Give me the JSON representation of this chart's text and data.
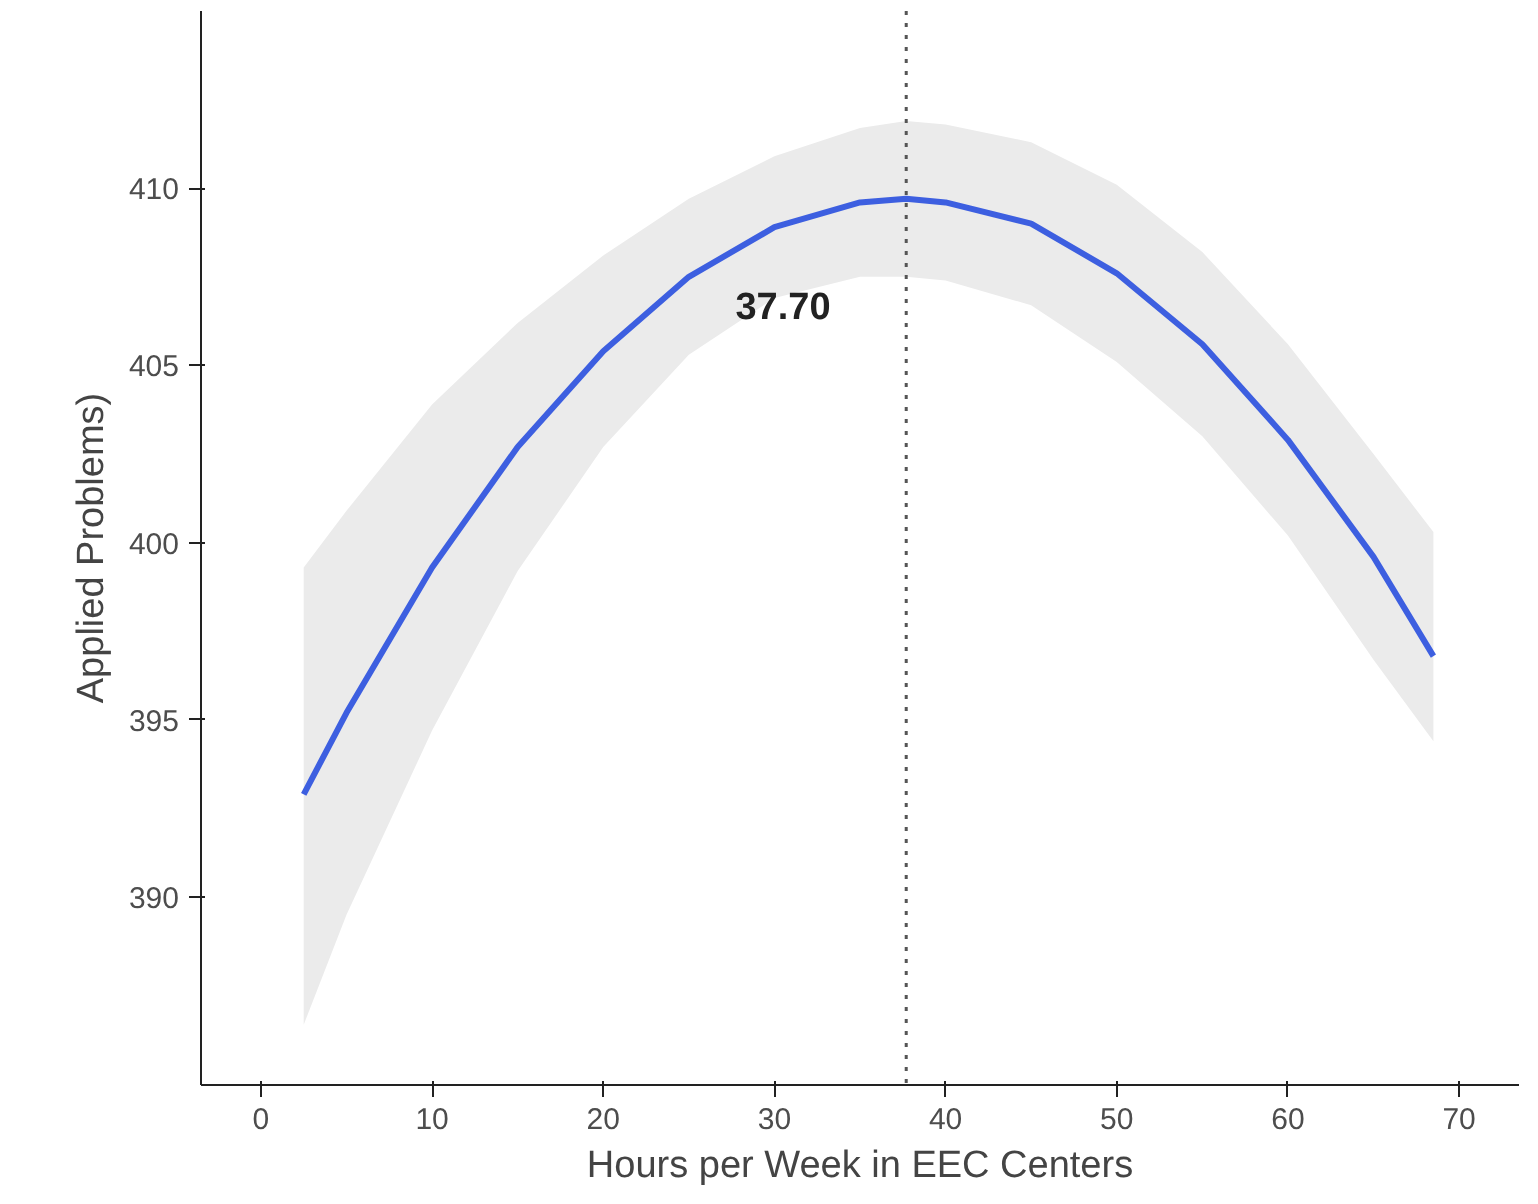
{
  "chart_data": {
    "type": "line",
    "xlabel": "Hours per Week in EEC Centers",
    "ylabel": "Applied Problems)",
    "xlim": [
      -3.5,
      73.5
    ],
    "ylim": [
      384.7,
      415
    ],
    "xticks": [
      0,
      10,
      20,
      30,
      40,
      50,
      60,
      70
    ],
    "yticks": [
      390,
      395,
      400,
      405,
      410
    ],
    "grid": false,
    "marker": "none",
    "line_style": "solid",
    "series": [
      {
        "color": "#3d5fe0",
        "x": [
          2.5,
          5,
          10,
          15,
          20,
          25,
          30,
          35,
          37.7,
          40,
          45,
          50,
          55,
          60,
          65,
          68.5
        ],
        "values": [
          392.9,
          395.2,
          399.3,
          402.7,
          405.4,
          407.5,
          408.9,
          409.6,
          409.7,
          409.6,
          409.0,
          407.6,
          405.6,
          402.9,
          399.6,
          396.8
        ],
        "lower": [
          386.4,
          389.5,
          394.7,
          399.2,
          402.7,
          405.3,
          406.9,
          407.5,
          407.5,
          407.4,
          406.7,
          405.1,
          403.0,
          400.2,
          396.7,
          394.4
        ],
        "upper": [
          399.3,
          400.9,
          403.9,
          406.2,
          408.1,
          409.7,
          410.9,
          411.7,
          411.9,
          411.8,
          411.3,
          410.1,
          408.2,
          405.6,
          402.5,
          400.3
        ]
      }
    ],
    "ref_lines": [
      {
        "axis": "x",
        "value": 37.7,
        "line_style": "dotted",
        "color": "#555555"
      }
    ],
    "annotations": [
      {
        "text": "37.70",
        "x": 30.5,
        "y": 406.7
      }
    ]
  }
}
